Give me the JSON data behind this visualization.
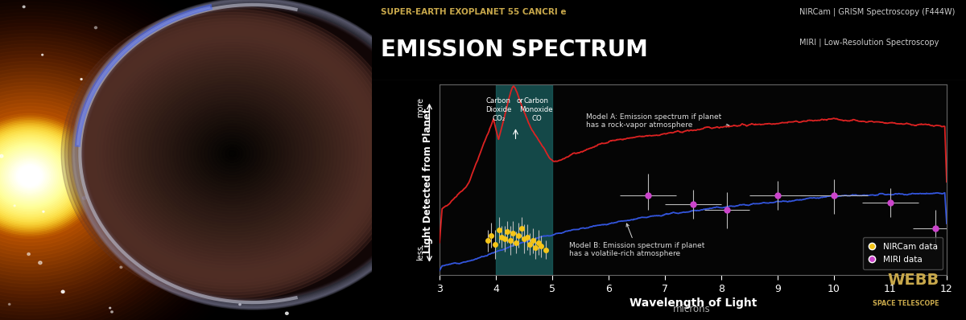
{
  "bg_color": "#000000",
  "subtitle": "SUPER-EARTH EXOPLANET 55 CANCRI e",
  "title": "EMISSION SPECTRUM",
  "subtitle_color": "#c8a84b",
  "title_color": "#ffffff",
  "top_right_text1": "NIRCam | GRISM Spectroscopy (F444W)",
  "top_right_text2": "MIRI | Low-Resolution Spectroscopy",
  "xlabel": "Wavelength of Light",
  "xlabel_sub": "microns",
  "ylabel": "Light Detected from Planet",
  "ylabel_less": "less",
  "ylabel_more": "more",
  "xlim": [
    3,
    12
  ],
  "ylim": [
    0,
    1.05
  ],
  "teal_box_color": "#1a6060",
  "model_a_label": "Model A: Emission spectrum if planet\nhas a rock-vapor atmosphere",
  "model_b_label": "Model B: Emission spectrum if planet\nhas a volatile-rich atmosphere",
  "legend_nircam": "NIRCam data",
  "legend_miri": "MIRI data",
  "nircam_color": "#f5c518",
  "miri_color": "#cc44cc",
  "model_a_color": "#dd2222",
  "model_b_color": "#3355dd",
  "webb_color": "#c8a84b",
  "nircam_x": [
    3.85,
    3.92,
    3.98,
    4.05,
    4.1,
    4.15,
    4.2,
    4.25,
    4.3,
    4.35,
    4.4,
    4.45,
    4.5,
    4.55,
    4.6,
    4.65,
    4.7,
    4.75,
    4.8,
    4.88
  ],
  "nircam_y": [
    0.19,
    0.22,
    0.17,
    0.25,
    0.21,
    0.2,
    0.24,
    0.19,
    0.23,
    0.18,
    0.22,
    0.26,
    0.2,
    0.21,
    0.17,
    0.19,
    0.15,
    0.18,
    0.16,
    0.14
  ],
  "nircam_yerr": [
    0.06,
    0.07,
    0.08,
    0.07,
    0.06,
    0.07,
    0.06,
    0.08,
    0.07,
    0.06,
    0.07,
    0.06,
    0.08,
    0.07,
    0.06,
    0.07,
    0.06,
    0.07,
    0.06,
    0.05
  ],
  "miri_x": [
    6.7,
    7.5,
    8.1,
    9.0,
    10.0,
    11.0,
    11.8
  ],
  "miri_y": [
    0.44,
    0.39,
    0.36,
    0.44,
    0.44,
    0.4,
    0.26
  ],
  "miri_xerr": [
    0.5,
    0.5,
    0.4,
    0.5,
    0.6,
    0.5,
    0.4
  ],
  "miri_yerr_up": [
    0.12,
    0.08,
    0.1,
    0.08,
    0.09,
    0.08,
    0.1
  ],
  "miri_yerr_dn": [
    0.08,
    0.08,
    0.1,
    0.08,
    0.1,
    0.08,
    0.12
  ]
}
